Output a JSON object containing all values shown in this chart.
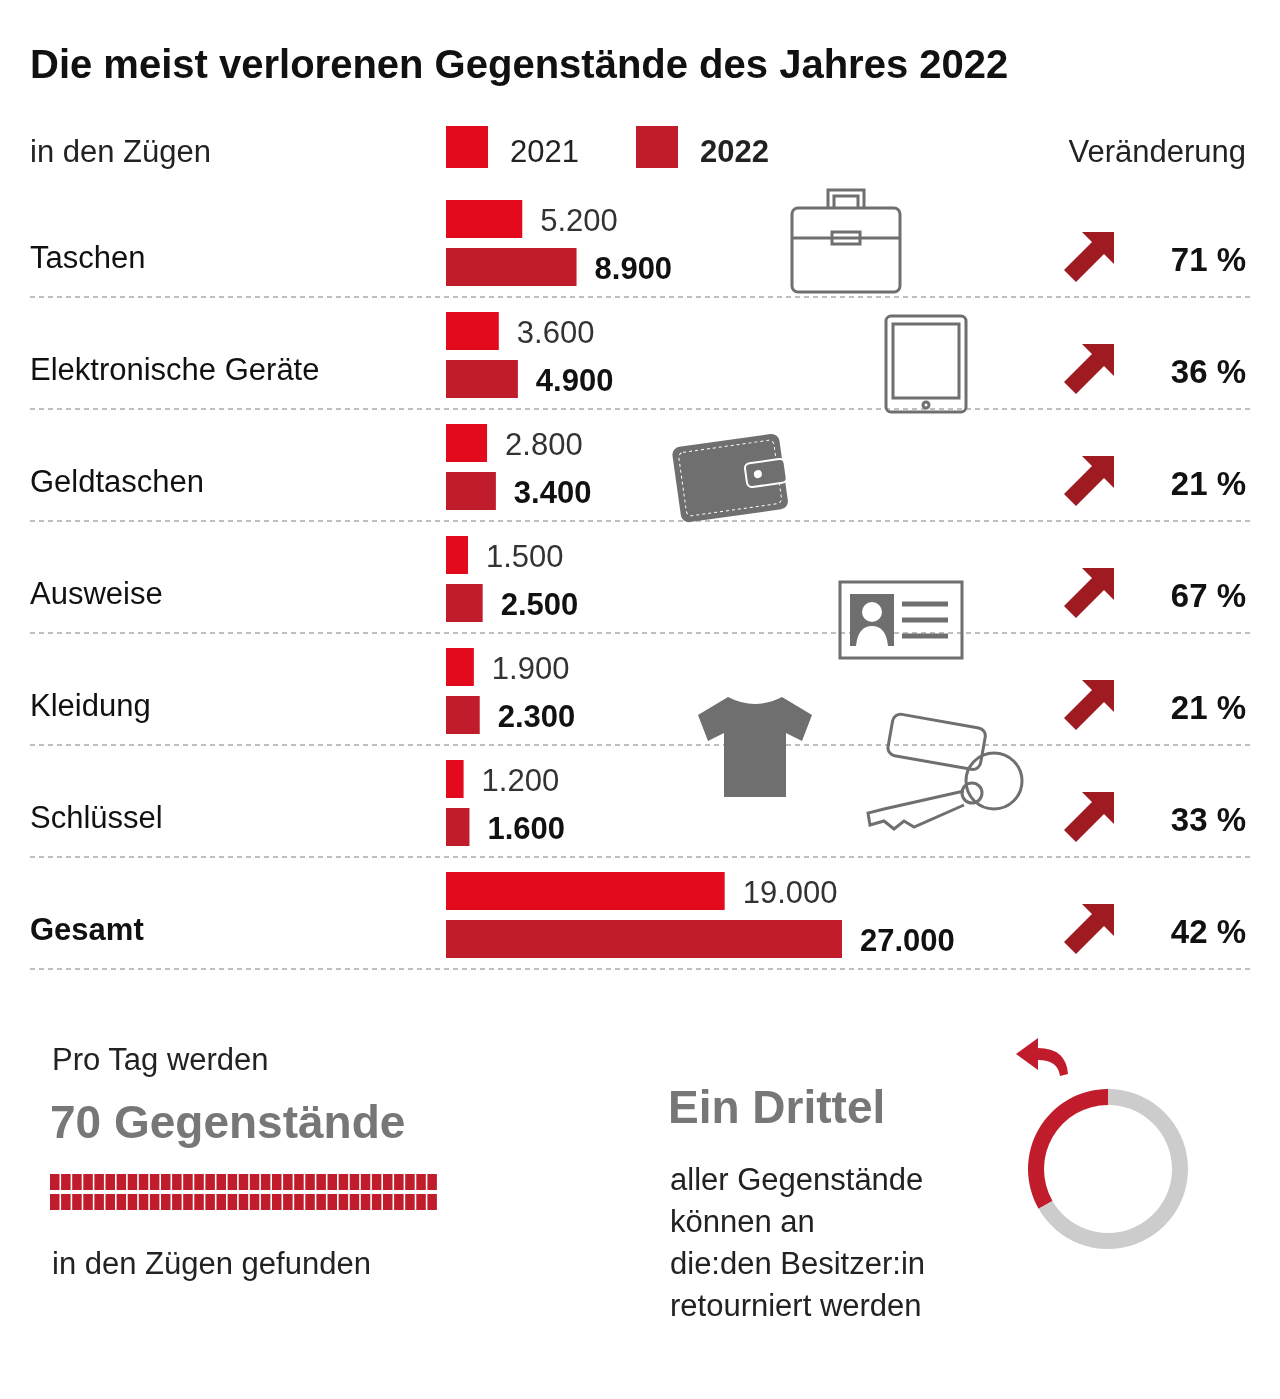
{
  "chart_data": [
    {
      "type": "bar",
      "orientation": "horizontal",
      "title": "Die meist verlorenen Gegenstände des Jahres 2022",
      "subtitle": "in den Zügen",
      "categories": [
        "Taschen",
        "Elektronische Geräte",
        "Geldtaschen",
        "Ausweise",
        "Kleidung",
        "Schlüssel",
        "Gesamt"
      ],
      "series": [
        {
          "name": "2021",
          "color": "#e30a1e",
          "values": [
            5200,
            3600,
            2800,
            1500,
            1900,
            1200,
            19000
          ],
          "value_labels": [
            "5.200",
            "3.600",
            "2.800",
            "1.500",
            "1.900",
            "1.200",
            "19.000"
          ]
        },
        {
          "name": "2022",
          "color": "#c01c2c",
          "values": [
            8900,
            4900,
            3400,
            2500,
            2300,
            1600,
            27000
          ],
          "value_labels": [
            "8.900",
            "4.900",
            "3.400",
            "2.500",
            "2.300",
            "1.600",
            "27.000"
          ]
        }
      ],
      "legend": "top",
      "grid": false,
      "annotations": [
        "Veränderung",
        "71 %",
        "36 %",
        "21 %",
        "67 %",
        "21 %",
        "33 %",
        "42 %"
      ]
    },
    {
      "type": "other",
      "subtitle": "Pro Tag werden",
      "title": "70 Gegenstände",
      "annotations": [
        "in den Zügen gefunden"
      ]
    },
    {
      "type": "donut",
      "title": "Ein Drittel",
      "categories": [
        null,
        null
      ],
      "values": [
        33.3,
        66.7
      ],
      "colors": [
        "#c01c2c",
        "#cccccc"
      ],
      "annotations": [
        "aller Gegenstände",
        "können an",
        "die:den Besitzer:in",
        "retourniert werden"
      ]
    }
  ]
}
